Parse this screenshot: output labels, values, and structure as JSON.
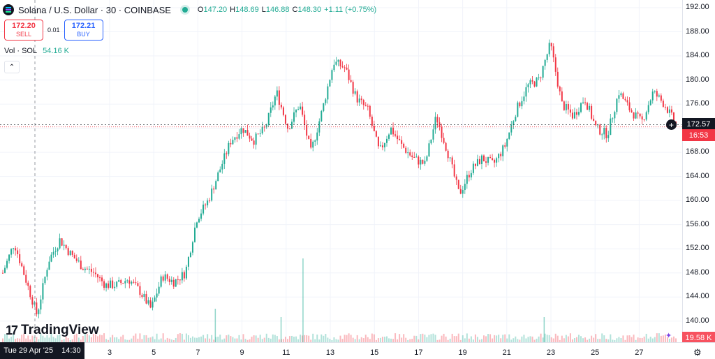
{
  "header": {
    "title": "Solana / U.S. Dollar · 30 · COINBASE",
    "open_k": "O",
    "open": "147.20",
    "high_k": "H",
    "high": "148.69",
    "low_k": "L",
    "low": "146.88",
    "close_k": "C",
    "close": "148.30",
    "change": "+1.11 (+0.75%)"
  },
  "trade": {
    "sell_price": "172.20",
    "sell_label": "SELL",
    "spread": "0.01",
    "buy_price": "172.21",
    "buy_label": "BUY"
  },
  "volume": {
    "label": "Vol · SOL",
    "value": "54.16 K",
    "axis_value": "19.58 K"
  },
  "price_axis": {
    "ticks": [
      "192.00",
      "188.00",
      "184.00",
      "180.00",
      "176.00",
      "172.00",
      "168.00",
      "164.00",
      "160.00",
      "156.00",
      "152.00",
      "148.00",
      "144.00",
      "140.00"
    ],
    "current": "172.57",
    "countdown": "16:53"
  },
  "time_axis": {
    "crosshair_date": "Tue 29 Apr '25",
    "crosshair_time": "14:30",
    "ticks": [
      "3",
      "5",
      "7",
      "9",
      "11",
      "13",
      "15",
      "17",
      "19",
      "21",
      "23",
      "25",
      "27"
    ]
  },
  "branding": {
    "name": "TradingView"
  },
  "colors": {
    "up": "#22ab94",
    "down": "#f23645",
    "crosshair": "#9598a1"
  },
  "chart_data": {
    "type": "candlestick",
    "symbol": "SOLUSD",
    "interval": "30",
    "ylim": [
      138,
      193
    ],
    "path": [
      {
        "x": "Apr 29",
        "y": 148
      },
      {
        "x": "Apr 29",
        "y": 153
      },
      {
        "x": "Apr 30",
        "y": 147
      },
      {
        "x": "Apr 30",
        "y": 141
      },
      {
        "x": "May 1",
        "y": 150
      },
      {
        "x": "May 1",
        "y": 153.5
      },
      {
        "x": "May 2",
        "y": 151
      },
      {
        "x": "May 2",
        "y": 149
      },
      {
        "x": "May 3",
        "y": 148
      },
      {
        "x": "May 4",
        "y": 146
      },
      {
        "x": "May 5",
        "y": 146
      },
      {
        "x": "May 5",
        "y": 147
      },
      {
        "x": "May 6",
        "y": 145
      },
      {
        "x": "May 6",
        "y": 142
      },
      {
        "x": "May 7",
        "y": 147.5
      },
      {
        "x": "May 7",
        "y": 146.5
      },
      {
        "x": "May 8",
        "y": 148
      },
      {
        "x": "May 8",
        "y": 157
      },
      {
        "x": "May 9",
        "y": 160
      },
      {
        "x": "May 9",
        "y": 165
      },
      {
        "x": "May 9",
        "y": 170
      },
      {
        "x": "May 10",
        "y": 172
      },
      {
        "x": "May 10",
        "y": 170
      },
      {
        "x": "May 11",
        "y": 172
      },
      {
        "x": "May 11",
        "y": 178
      },
      {
        "x": "May 12",
        "y": 172
      },
      {
        "x": "May 12",
        "y": 176
      },
      {
        "x": "May 13",
        "y": 168
      },
      {
        "x": "May 13",
        "y": 175
      },
      {
        "x": "May 14",
        "y": 183
      },
      {
        "x": "May 14",
        "y": 182
      },
      {
        "x": "May 15",
        "y": 177
      },
      {
        "x": "May 15",
        "y": 175
      },
      {
        "x": "May 16",
        "y": 168
      },
      {
        "x": "May 16",
        "y": 172
      },
      {
        "x": "May 17",
        "y": 169
      },
      {
        "x": "May 17",
        "y": 167
      },
      {
        "x": "May 18",
        "y": 166
      },
      {
        "x": "May 18",
        "y": 174
      },
      {
        "x": "May 19",
        "y": 168
      },
      {
        "x": "May 19",
        "y": 161
      },
      {
        "x": "May 20",
        "y": 165
      },
      {
        "x": "May 20",
        "y": 167
      },
      {
        "x": "May 21",
        "y": 166
      },
      {
        "x": "May 21",
        "y": 169
      },
      {
        "x": "May 22",
        "y": 175
      },
      {
        "x": "May 22",
        "y": 179
      },
      {
        "x": "May 23",
        "y": 180
      },
      {
        "x": "May 23",
        "y": 186
      },
      {
        "x": "May 23",
        "y": 176
      },
      {
        "x": "May 24",
        "y": 174
      },
      {
        "x": "May 24",
        "y": 177
      },
      {
        "x": "May 25",
        "y": 172
      },
      {
        "x": "May 25",
        "y": 171
      },
      {
        "x": "May 26",
        "y": 178
      },
      {
        "x": "May 26",
        "y": 175
      },
      {
        "x": "May 27",
        "y": 173
      },
      {
        "x": "May 27",
        "y": 178
      },
      {
        "x": "May 28",
        "y": 176
      },
      {
        "x": "May 28",
        "y": 172.57
      }
    ],
    "volume_spikes": [
      {
        "x": "May 8",
        "v": 0.4
      },
      {
        "x": "May 11",
        "v": 0.3
      },
      {
        "x": "May 12",
        "v": 1.0
      },
      {
        "x": "May 23",
        "v": 0.3
      }
    ]
  }
}
